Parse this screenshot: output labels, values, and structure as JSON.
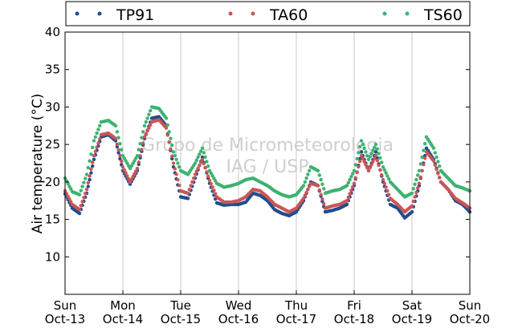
{
  "chart_data": {
    "type": "scatter",
    "ylabel": "Air temperature (°C)",
    "ylim": [
      5,
      40
    ],
    "yticks": [
      10,
      15,
      20,
      25,
      30,
      35,
      40
    ],
    "xlim": [
      "2013-10-13",
      "2013-10-20"
    ],
    "xticks": [
      {
        "day": "Sun",
        "date": "Oct-13"
      },
      {
        "day": "Mon",
        "date": "Oct-14"
      },
      {
        "day": "Tue",
        "date": "Oct-15"
      },
      {
        "day": "Wed",
        "date": "Oct-16"
      },
      {
        "day": "Thu",
        "date": "Oct-17"
      },
      {
        "day": "Fri",
        "date": "Oct-18"
      },
      {
        "day": "Sat",
        "date": "Oct-19"
      },
      {
        "day": "Sun",
        "date": "Oct-20"
      }
    ],
    "grid": "vertical",
    "legend_position": "top",
    "watermark": [
      "Grupo de Micrometeorologia",
      "IAG / USP"
    ],
    "series": [
      {
        "name": "TP91",
        "color": "#1f4e8c",
        "x": [
          "2013-10-13 00:00",
          "2013-10-13 03:00",
          "2013-10-13 06:00",
          "2013-10-13 09:00",
          "2013-10-13 12:00",
          "2013-10-13 15:00",
          "2013-10-13 18:00",
          "2013-10-13 21:00",
          "2013-10-14 00:00",
          "2013-10-14 03:00",
          "2013-10-14 06:00",
          "2013-10-14 09:00",
          "2013-10-14 12:00",
          "2013-10-14 15:00",
          "2013-10-14 18:00",
          "2013-10-14 21:00",
          "2013-10-15 00:00",
          "2013-10-15 03:00",
          "2013-10-15 06:00",
          "2013-10-15 09:00",
          "2013-10-15 12:00",
          "2013-10-15 15:00",
          "2013-10-15 18:00",
          "2013-10-15 21:00",
          "2013-10-16 00:00",
          "2013-10-16 03:00",
          "2013-10-16 06:00",
          "2013-10-16 09:00",
          "2013-10-16 12:00",
          "2013-10-16 15:00",
          "2013-10-16 18:00",
          "2013-10-16 21:00",
          "2013-10-17 00:00",
          "2013-10-17 03:00",
          "2013-10-17 06:00",
          "2013-10-17 09:00",
          "2013-10-17 12:00",
          "2013-10-17 15:00",
          "2013-10-17 18:00",
          "2013-10-17 21:00",
          "2013-10-18 00:00",
          "2013-10-18 03:00",
          "2013-10-18 06:00",
          "2013-10-18 09:00",
          "2013-10-18 12:00",
          "2013-10-18 15:00",
          "2013-10-18 18:00",
          "2013-10-18 21:00",
          "2013-10-19 00:00",
          "2013-10-19 03:00",
          "2013-10-19 06:00",
          "2013-10-19 09:00",
          "2013-10-19 12:00",
          "2013-10-19 15:00",
          "2013-10-19 18:00",
          "2013-10-19 21:00",
          "2013-10-20 00:00"
        ],
        "values": [
          18.4,
          16.5,
          15.8,
          18.5,
          23.0,
          26.0,
          26.3,
          25.5,
          21.5,
          19.7,
          21.5,
          25.8,
          28.5,
          28.7,
          27.5,
          22.0,
          18.0,
          17.8,
          20.5,
          23.3,
          19.8,
          17.2,
          16.9,
          17.0,
          17.0,
          17.3,
          18.5,
          18.2,
          17.5,
          16.3,
          15.8,
          15.5,
          16.0,
          17.5,
          20.0,
          19.5,
          16.0,
          16.2,
          16.5,
          17.0,
          19.5,
          24.0,
          21.5,
          24.0,
          20.0,
          17.0,
          16.5,
          15.2,
          16.0,
          19.5,
          24.5,
          23.0,
          20.0,
          19.0,
          17.5,
          17.0,
          16.0
        ]
      },
      {
        "name": "TA60",
        "color": "#cc5555",
        "x": [
          "2013-10-13 00:00",
          "2013-10-13 03:00",
          "2013-10-13 06:00",
          "2013-10-13 09:00",
          "2013-10-13 12:00",
          "2013-10-13 15:00",
          "2013-10-13 18:00",
          "2013-10-13 21:00",
          "2013-10-14 00:00",
          "2013-10-14 03:00",
          "2013-10-14 06:00",
          "2013-10-14 09:00",
          "2013-10-14 12:00",
          "2013-10-14 15:00",
          "2013-10-14 18:00",
          "2013-10-14 21:00",
          "2013-10-15 00:00",
          "2013-10-15 03:00",
          "2013-10-15 06:00",
          "2013-10-15 09:00",
          "2013-10-15 12:00",
          "2013-10-15 15:00",
          "2013-10-15 18:00",
          "2013-10-15 21:00",
          "2013-10-16 00:00",
          "2013-10-16 03:00",
          "2013-10-16 06:00",
          "2013-10-16 09:00",
          "2013-10-16 12:00",
          "2013-10-16 15:00",
          "2013-10-16 18:00",
          "2013-10-16 21:00",
          "2013-10-17 00:00",
          "2013-10-17 03:00",
          "2013-10-17 06:00",
          "2013-10-17 09:00",
          "2013-10-17 12:00",
          "2013-10-17 15:00",
          "2013-10-17 18:00",
          "2013-10-17 21:00",
          "2013-10-18 00:00",
          "2013-10-18 03:00",
          "2013-10-18 06:00",
          "2013-10-18 09:00",
          "2013-10-18 12:00",
          "2013-10-18 15:00",
          "2013-10-18 18:00",
          "2013-10-18 21:00",
          "2013-10-19 00:00",
          "2013-10-19 03:00",
          "2013-10-19 06:00",
          "2013-10-19 09:00",
          "2013-10-19 12:00",
          "2013-10-19 15:00",
          "2013-10-19 18:00",
          "2013-10-19 21:00",
          "2013-10-20 00:00"
        ],
        "values": [
          18.8,
          17.0,
          16.3,
          19.0,
          23.5,
          26.3,
          26.5,
          25.8,
          22.0,
          20.0,
          21.8,
          26.0,
          28.0,
          28.3,
          27.2,
          22.5,
          18.8,
          18.5,
          21.0,
          23.0,
          20.2,
          18.0,
          17.3,
          17.3,
          17.5,
          18.0,
          19.0,
          18.8,
          18.0,
          17.0,
          16.5,
          16.0,
          16.5,
          17.8,
          19.8,
          19.5,
          16.5,
          16.8,
          17.0,
          17.5,
          19.8,
          23.5,
          21.5,
          23.5,
          20.3,
          17.8,
          17.0,
          16.0,
          16.8,
          19.8,
          24.0,
          22.8,
          20.0,
          19.0,
          17.8,
          17.2,
          16.5
        ]
      },
      {
        "name": "TS60",
        "color": "#3cb371",
        "x": [
          "2013-10-13 00:00",
          "2013-10-13 03:00",
          "2013-10-13 06:00",
          "2013-10-13 09:00",
          "2013-10-13 12:00",
          "2013-10-13 15:00",
          "2013-10-13 18:00",
          "2013-10-13 21:00",
          "2013-10-14 00:00",
          "2013-10-14 03:00",
          "2013-10-14 06:00",
          "2013-10-14 09:00",
          "2013-10-14 12:00",
          "2013-10-14 15:00",
          "2013-10-14 18:00",
          "2013-10-14 21:00",
          "2013-10-15 00:00",
          "2013-10-15 03:00",
          "2013-10-15 06:00",
          "2013-10-15 09:00",
          "2013-10-15 12:00",
          "2013-10-15 15:00",
          "2013-10-15 18:00",
          "2013-10-15 21:00",
          "2013-10-16 00:00",
          "2013-10-16 03:00",
          "2013-10-16 06:00",
          "2013-10-16 09:00",
          "2013-10-16 12:00",
          "2013-10-16 15:00",
          "2013-10-16 18:00",
          "2013-10-16 21:00",
          "2013-10-17 00:00",
          "2013-10-17 03:00",
          "2013-10-17 06:00",
          "2013-10-17 09:00",
          "2013-10-17 12:00",
          "2013-10-17 15:00",
          "2013-10-17 18:00",
          "2013-10-17 21:00",
          "2013-10-18 00:00",
          "2013-10-18 03:00",
          "2013-10-18 06:00",
          "2013-10-18 09:00",
          "2013-10-18 12:00",
          "2013-10-18 15:00",
          "2013-10-18 18:00",
          "2013-10-18 21:00",
          "2013-10-19 00:00",
          "2013-10-19 03:00",
          "2013-10-19 06:00",
          "2013-10-19 09:00",
          "2013-10-19 12:00",
          "2013-10-19 15:00",
          "2013-10-19 18:00",
          "2013-10-19 21:00",
          "2013-10-20 00:00"
        ],
        "values": [
          20.5,
          18.7,
          18.3,
          21.0,
          25.5,
          28.0,
          28.2,
          27.5,
          23.5,
          21.8,
          23.5,
          27.5,
          30.0,
          29.8,
          28.5,
          24.0,
          21.5,
          21.0,
          22.5,
          24.5,
          21.5,
          19.8,
          19.3,
          19.5,
          19.8,
          20.3,
          20.5,
          20.0,
          19.5,
          18.8,
          18.3,
          18.0,
          18.3,
          19.5,
          22.0,
          21.5,
          18.5,
          18.8,
          19.0,
          19.5,
          21.5,
          25.5,
          23.0,
          25.0,
          22.0,
          20.0,
          19.0,
          18.0,
          18.5,
          21.5,
          26.0,
          24.5,
          21.5,
          20.5,
          19.5,
          19.2,
          18.8
        ]
      }
    ]
  }
}
